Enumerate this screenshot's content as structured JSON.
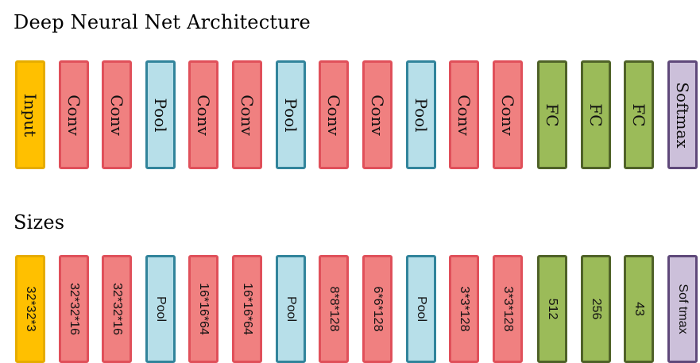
{
  "title": "Deep Neural Net Architecture",
  "subtitle": "Sizes",
  "architecture": [
    {
      "type": "input",
      "label": "Input"
    },
    {
      "type": "conv",
      "label": "Conv"
    },
    {
      "type": "conv",
      "label": "Conv"
    },
    {
      "type": "pool",
      "label": "Pool"
    },
    {
      "type": "conv",
      "label": "Conv"
    },
    {
      "type": "conv",
      "label": "Conv"
    },
    {
      "type": "pool",
      "label": "Pool"
    },
    {
      "type": "conv",
      "label": "Conv"
    },
    {
      "type": "conv",
      "label": "Conv"
    },
    {
      "type": "pool",
      "label": "Pool"
    },
    {
      "type": "conv",
      "label": "Conv"
    },
    {
      "type": "conv",
      "label": "Conv"
    },
    {
      "type": "fc",
      "label": "FC"
    },
    {
      "type": "fc",
      "label": "FC"
    },
    {
      "type": "fc",
      "label": "FC"
    },
    {
      "type": "softmax",
      "label": "Softmax"
    }
  ],
  "sizes": [
    {
      "type": "input",
      "label": "32*32*3"
    },
    {
      "type": "conv",
      "label": "32*32*16"
    },
    {
      "type": "conv",
      "label": "32*32*16"
    },
    {
      "type": "pool",
      "label": "Pool"
    },
    {
      "type": "conv",
      "label": "16*16*64"
    },
    {
      "type": "conv",
      "label": "16*16*64"
    },
    {
      "type": "pool",
      "label": "Pool"
    },
    {
      "type": "conv",
      "label": "8*8*128"
    },
    {
      "type": "conv",
      "label": "6*6*128"
    },
    {
      "type": "pool",
      "label": "Pool"
    },
    {
      "type": "conv",
      "label": "3*3*128"
    },
    {
      "type": "conv",
      "label": "3*3*128"
    },
    {
      "type": "fc",
      "label": "512"
    },
    {
      "type": "fc",
      "label": "256"
    },
    {
      "type": "fc",
      "label": "43"
    },
    {
      "type": "softmax",
      "label": "Sof tmax"
    }
  ],
  "colors": {
    "input": "#ffc000",
    "conv": "#f08080",
    "pool": "#b7dfe9",
    "fc": "#9bbb59",
    "softmax": "#ccc0da"
  }
}
